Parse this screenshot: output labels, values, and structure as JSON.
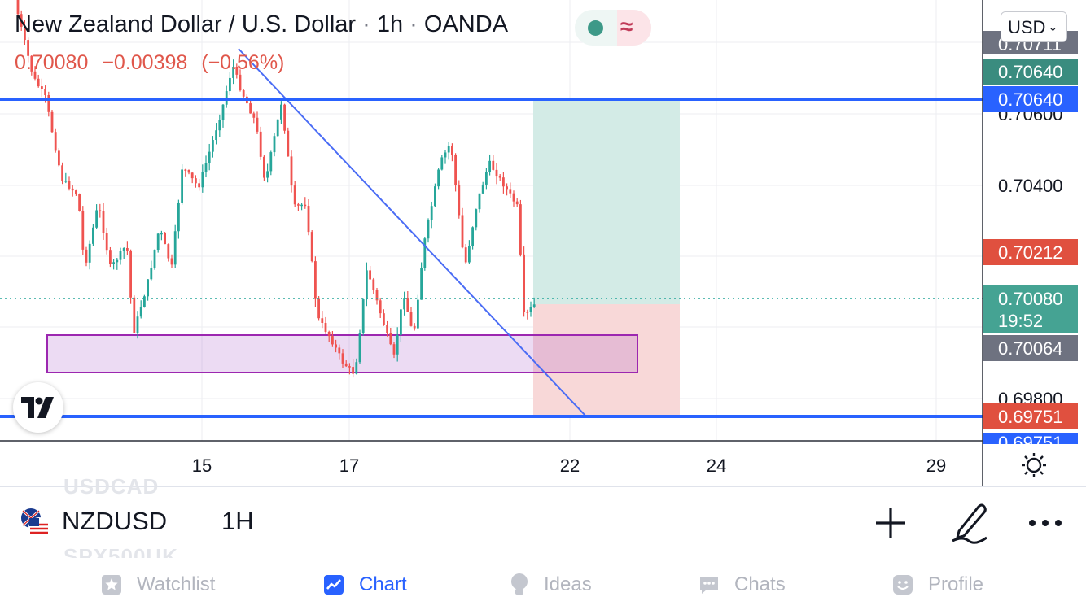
{
  "header": {
    "pair_name": "New Zealand Dollar / U.S. Dollar",
    "interval": "1h",
    "broker": "OANDA",
    "separator": "·",
    "last_price": "0.70080",
    "change": "−0.00398",
    "change_pct": "(−0.56%)"
  },
  "currency_selector": {
    "label": "USD"
  },
  "status_icons": {
    "market": "market-open-dot-icon",
    "delayed": "delayed-wave-icon",
    "wave_glyph": "≈"
  },
  "price_axis": {
    "ticks": [
      "0.70600",
      "0.70400",
      "0.69800"
    ],
    "labels": {
      "top_cut": "0.70711",
      "level_green": "0.70640",
      "level_blue_top": "0.70640",
      "red_mid": "0.70212",
      "current": "0.70080",
      "countdown": "19:52",
      "gray": "0.70064",
      "level_blue_bottom": "0.69751",
      "bottom_cut": "0.69751"
    }
  },
  "time_axis": {
    "ticks": [
      "15",
      "17",
      "22",
      "24",
      "29"
    ]
  },
  "chart_data": {
    "type": "candlestick",
    "symbol": "NZDUSD",
    "timeframe": "1h",
    "last": 0.7008,
    "horizontal_lines": [
      0.7064,
      0.69751
    ],
    "position_tool": {
      "entry": 0.7008,
      "target": 0.7064,
      "stop": 0.69751
    },
    "support_zone": [
      0.6989,
      0.6999
    ],
    "trendline": {
      "from": 0.7074,
      "to": 0.69751
    },
    "colors": {
      "up": "#26a69a",
      "down": "#ef5350",
      "lines": "#2962ff",
      "zone": "#9c27b0"
    }
  },
  "symbol_bar": {
    "symbol": "NZDUSD",
    "interval": "1H",
    "ghost_above": "USDCAD",
    "ghost_below": "SPX500UK"
  },
  "tabs": [
    {
      "label": "Watchlist",
      "icon": "star-icon"
    },
    {
      "label": "Chart",
      "icon": "chart-icon"
    },
    {
      "label": "Ideas",
      "icon": "ideas-icon"
    },
    {
      "label": "Chats",
      "icon": "chats-icon"
    },
    {
      "label": "Profile",
      "icon": "profile-icon"
    }
  ]
}
